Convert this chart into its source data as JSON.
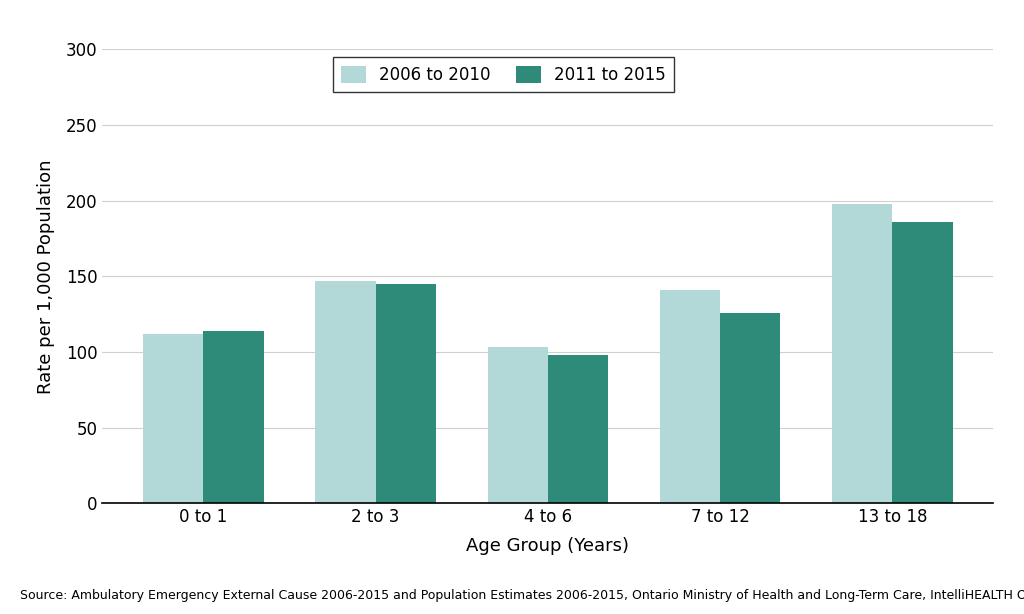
{
  "categories": [
    "0 to 1",
    "2 to 3",
    "4 to 6",
    "7 to 12",
    "13 to 18"
  ],
  "series_2006_2010": [
    112,
    147,
    103,
    141,
    198
  ],
  "series_2011_2015": [
    114,
    145,
    98,
    126,
    186
  ],
  "color_2006_2010": "#b2d8d8",
  "color_2011_2015": "#2e8b7a",
  "xlabel": "Age Group (Years)",
  "ylabel": "Rate per 1,000 Population",
  "legend_label_1": "2006 to 2010",
  "legend_label_2": "2011 to 2015",
  "ylim": [
    0,
    300
  ],
  "yticks": [
    0,
    50,
    100,
    150,
    200,
    250,
    300
  ],
  "footnote": "Source: Ambulatory Emergency External Cause 2006-2015 and Population Estimates 2006-2015, Ontario Ministry of Health and Long-Term Care, IntelliHEALTH Ontario",
  "bar_width": 0.35,
  "grid_color": "#d0d0d0",
  "background_color": "#ffffff",
  "axis_fontsize": 13,
  "tick_fontsize": 12,
  "legend_fontsize": 12,
  "footnote_fontsize": 9
}
